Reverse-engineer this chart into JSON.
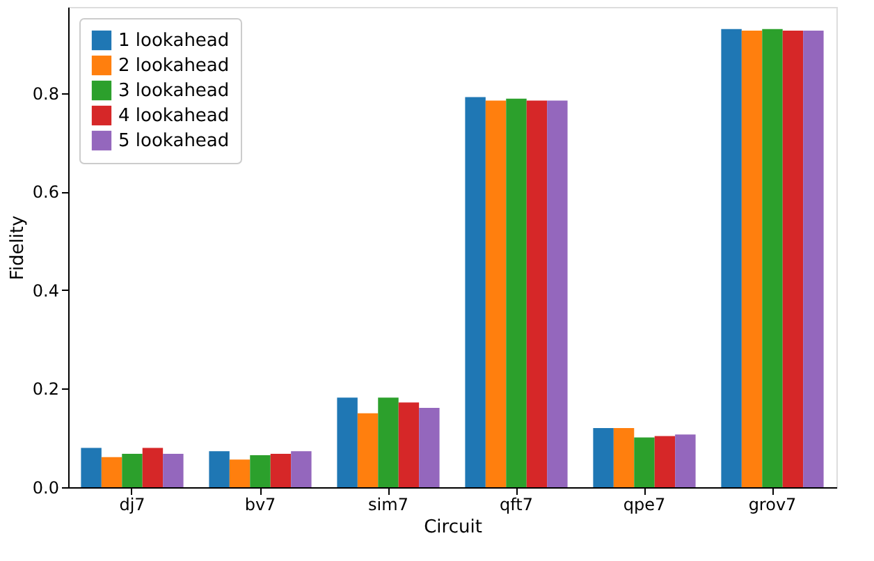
{
  "chart_data": {
    "type": "bar",
    "xlabel": "Circuit",
    "ylabel": "Fidelity",
    "categories": [
      "dj7",
      "bv7",
      "sim7",
      "qft7",
      "qpe7",
      "grov7"
    ],
    "series": [
      {
        "name": "1 lookahead",
        "color": "#1f77b4",
        "values": [
          0.08,
          0.073,
          0.182,
          0.792,
          0.12,
          0.93
        ]
      },
      {
        "name": "2 lookahead",
        "color": "#ff7f0e",
        "values": [
          0.061,
          0.056,
          0.15,
          0.785,
          0.12,
          0.927
        ]
      },
      {
        "name": "3 lookahead",
        "color": "#2ca02c",
        "values": [
          0.068,
          0.065,
          0.182,
          0.789,
          0.101,
          0.93
        ]
      },
      {
        "name": "4 lookahead",
        "color": "#d62728",
        "values": [
          0.08,
          0.068,
          0.172,
          0.785,
          0.104,
          0.927
        ]
      },
      {
        "name": "5 lookahead",
        "color": "#9467bd",
        "values": [
          0.068,
          0.073,
          0.161,
          0.785,
          0.107,
          0.927
        ]
      }
    ],
    "ylim": [
      0,
      0.975
    ],
    "yticks": [
      {
        "value": 0,
        "label": "0.0"
      },
      {
        "value": 0.2,
        "label": "0.2"
      },
      {
        "value": 0.4,
        "label": "0.4"
      },
      {
        "value": 0.6,
        "label": "0.6"
      },
      {
        "value": 0.8,
        "label": "0.8"
      }
    ],
    "grid": false,
    "legend": "top left"
  }
}
